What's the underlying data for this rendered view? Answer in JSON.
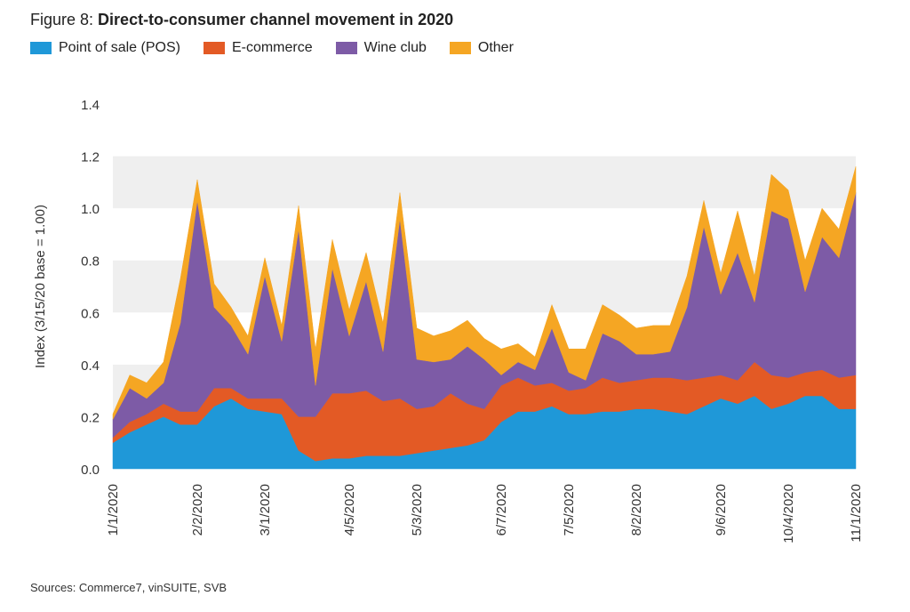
{
  "header": {
    "prefix": "Figure 8: ",
    "title": "Direct-to-consumer channel movement in 2020"
  },
  "source": "Sources: Commerce7, vinSUITE, SVB",
  "chart_data": {
    "type": "area",
    "stacked": true,
    "title": "Direct-to-consumer channel movement in 2020",
    "ylabel": "Index (3/15/20 base = 1.00)",
    "xlabel": "",
    "ylim": [
      0,
      1.4
    ],
    "yticks": [
      "0.0",
      "0.2",
      "0.4",
      "0.6",
      "0.8",
      "1.0",
      "1.2",
      "1.4"
    ],
    "grid": "alternating horizontal bands",
    "legend_position": "top-left",
    "x_tick_labels": [
      "1/1/2020",
      "2/2/2020",
      "3/1/2020",
      "4/5/2020",
      "5/3/2020",
      "6/7/2020",
      "7/5/2020",
      "8/2/2020",
      "9/6/2020",
      "10/4/2020",
      "11/1/2020"
    ],
    "x_tick_indices": [
      0,
      5,
      9,
      14,
      18,
      23,
      27,
      31,
      36,
      40,
      44
    ],
    "series": [
      {
        "name": "Point of sale (POS)",
        "color": "#1f98d8",
        "values": [
          0.1,
          0.14,
          0.17,
          0.2,
          0.17,
          0.17,
          0.24,
          0.27,
          0.23,
          0.22,
          0.21,
          0.07,
          0.03,
          0.04,
          0.04,
          0.05,
          0.05,
          0.05,
          0.06,
          0.07,
          0.08,
          0.09,
          0.11,
          0.18,
          0.22,
          0.22,
          0.24,
          0.21,
          0.21,
          0.22,
          0.22,
          0.23,
          0.23,
          0.22,
          0.21,
          0.24,
          0.27,
          0.25,
          0.28,
          0.23,
          0.25,
          0.28,
          0.28,
          0.23,
          0.23
        ]
      },
      {
        "name": "E-commerce",
        "color": "#e35a25",
        "values": [
          0.02,
          0.04,
          0.04,
          0.05,
          0.05,
          0.05,
          0.07,
          0.04,
          0.04,
          0.05,
          0.06,
          0.13,
          0.17,
          0.25,
          0.25,
          0.25,
          0.21,
          0.22,
          0.17,
          0.17,
          0.21,
          0.16,
          0.12,
          0.14,
          0.13,
          0.1,
          0.09,
          0.09,
          0.1,
          0.13,
          0.11,
          0.11,
          0.12,
          0.13,
          0.13,
          0.11,
          0.09,
          0.09,
          0.13,
          0.13,
          0.1,
          0.09,
          0.1,
          0.12,
          0.13
        ]
      },
      {
        "name": "Wine club",
        "color": "#7d5ba6",
        "values": [
          0.07,
          0.13,
          0.06,
          0.08,
          0.34,
          0.81,
          0.31,
          0.24,
          0.17,
          0.47,
          0.22,
          0.72,
          0.12,
          0.48,
          0.22,
          0.42,
          0.19,
          0.69,
          0.19,
          0.17,
          0.13,
          0.22,
          0.19,
          0.04,
          0.06,
          0.06,
          0.21,
          0.07,
          0.03,
          0.17,
          0.16,
          0.1,
          0.09,
          0.1,
          0.28,
          0.58,
          0.31,
          0.49,
          0.23,
          0.63,
          0.61,
          0.31,
          0.51,
          0.46,
          0.7
        ]
      },
      {
        "name": "Other",
        "color": "#f5a623",
        "values": [
          0.02,
          0.05,
          0.06,
          0.08,
          0.17,
          0.08,
          0.09,
          0.07,
          0.07,
          0.07,
          0.06,
          0.09,
          0.14,
          0.11,
          0.1,
          0.11,
          0.11,
          0.1,
          0.12,
          0.1,
          0.11,
          0.1,
          0.08,
          0.1,
          0.07,
          0.05,
          0.09,
          0.09,
          0.12,
          0.11,
          0.1,
          0.1,
          0.11,
          0.1,
          0.12,
          0.1,
          0.08,
          0.16,
          0.1,
          0.14,
          0.11,
          0.12,
          0.11,
          0.11,
          0.1
        ]
      }
    ]
  }
}
